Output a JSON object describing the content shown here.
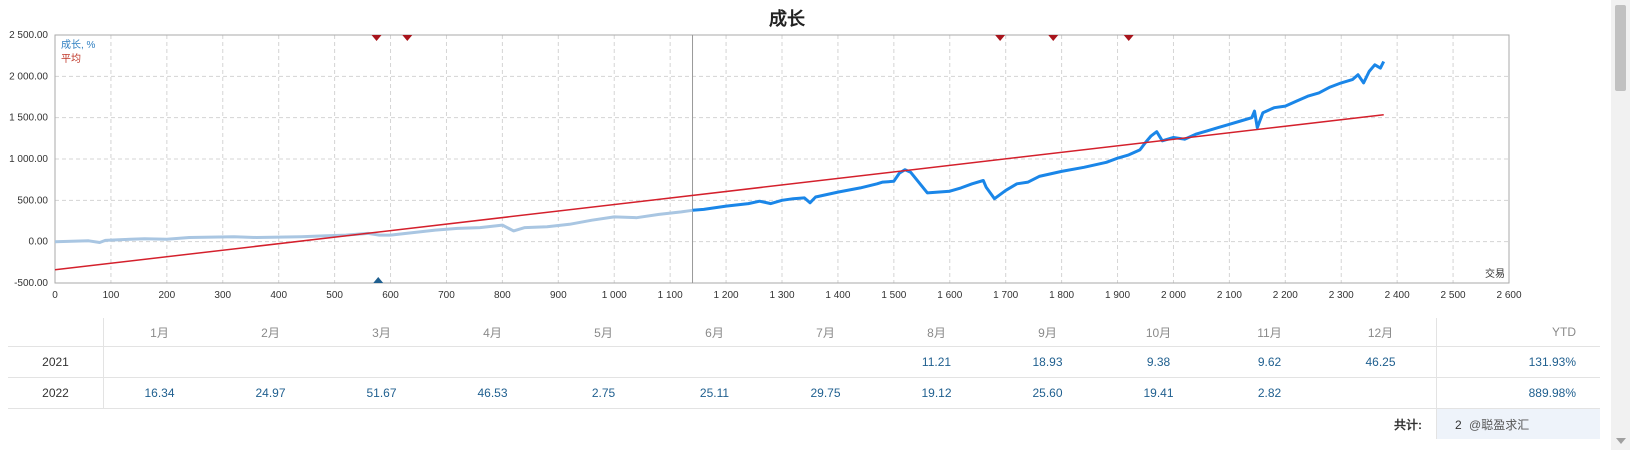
{
  "chart_data": {
    "type": "line",
    "title": "成长",
    "legend": [
      {
        "label": "成长, %",
        "color": "#2f7fc1"
      },
      {
        "label": "平均",
        "color": "#c0392b"
      }
    ],
    "legend_position": "top-left",
    "xlabel": "交易",
    "xlim": [
      0,
      2600
    ],
    "ylim": [
      -500,
      2500
    ],
    "grid": true,
    "x_ticks": [
      "0",
      "100",
      "200",
      "300",
      "400",
      "500",
      "600",
      "700",
      "800",
      "900",
      "1 000",
      "1 100",
      "1 200",
      "1 300",
      "1 400",
      "1 500",
      "1 600",
      "1 700",
      "1 800",
      "1 900",
      "2 000",
      "2 100",
      "2 200",
      "2 300",
      "2 400",
      "2 500",
      "2 600"
    ],
    "y_ticks": [
      "2 500.00",
      "2 000.00",
      "1 500.00",
      "1 000.00",
      "500.00",
      "0.00",
      "-500.00"
    ],
    "divider_x": 1140,
    "series": [
      {
        "name": "成长, %",
        "history_color": "#a9c6e2",
        "color": "#1a86e8",
        "history_until_x": 1140,
        "x": [
          0,
          30,
          60,
          80,
          90,
          120,
          160,
          200,
          240,
          280,
          320,
          360,
          400,
          440,
          480,
          520,
          560,
          580,
          600,
          640,
          680,
          720,
          760,
          800,
          820,
          840,
          880,
          920,
          960,
          1000,
          1040,
          1080,
          1120,
          1140,
          1160,
          1200,
          1240,
          1260,
          1280,
          1300,
          1320,
          1340,
          1350,
          1360,
          1400,
          1440,
          1470,
          1480,
          1500,
          1510,
          1520,
          1530,
          1560,
          1600,
          1620,
          1640,
          1660,
          1665,
          1680,
          1700,
          1720,
          1740,
          1760,
          1780,
          1800,
          1840,
          1860,
          1880,
          1900,
          1920,
          1940,
          1950,
          1960,
          1970,
          1980,
          2000,
          2020,
          2040,
          2060,
          2080,
          2100,
          2120,
          2140,
          2145,
          2150,
          2160,
          2180,
          2200,
          2220,
          2240,
          2260,
          2280,
          2300,
          2320,
          2330,
          2340,
          2350,
          2360,
          2370,
          2376
        ],
        "y": [
          0,
          5,
          10,
          -10,
          15,
          25,
          35,
          30,
          50,
          55,
          60,
          50,
          55,
          60,
          70,
          80,
          100,
          80,
          80,
          110,
          140,
          160,
          170,
          200,
          130,
          170,
          180,
          210,
          260,
          300,
          290,
          330,
          360,
          380,
          390,
          430,
          460,
          490,
          460,
          500,
          520,
          530,
          470,
          540,
          600,
          650,
          700,
          720,
          730,
          830,
          870,
          840,
          590,
          610,
          650,
          700,
          740,
          660,
          520,
          620,
          700,
          720,
          790,
          820,
          850,
          900,
          930,
          960,
          1010,
          1050,
          1110,
          1200,
          1280,
          1330,
          1220,
          1260,
          1240,
          1300,
          1340,
          1380,
          1420,
          1460,
          1500,
          1580,
          1380,
          1560,
          1620,
          1640,
          1700,
          1760,
          1800,
          1870,
          1920,
          1960,
          2020,
          1920,
          2060,
          2140,
          2100,
          2180
        ]
      },
      {
        "name": "平均",
        "color": "#d4202c",
        "x": [
          0,
          2376
        ],
        "y": [
          -340,
          1535
        ]
      }
    ],
    "markers_top_x": [
      575,
      630,
      1690,
      1785,
      1920
    ],
    "marker_bottom_x": 578,
    "markers_top_color": "#a8141c",
    "marker_bottom_color": "#1f5f8f"
  },
  "table": {
    "months": [
      "1月",
      "2月",
      "3月",
      "4月",
      "5月",
      "6月",
      "7月",
      "8月",
      "9月",
      "10月",
      "11月",
      "12月"
    ],
    "ytd_label": "YTD",
    "rows": [
      {
        "year": "2021",
        "values": [
          "",
          "",
          "",
          "",
          "",
          "",
          "",
          "11.21",
          "18.93",
          "9.38",
          "9.62",
          "46.25"
        ],
        "ytd": "131.93%"
      },
      {
        "year": "2022",
        "values": [
          "16.34",
          "24.97",
          "51.67",
          "46.53",
          "2.75",
          "25.11",
          "29.75",
          "19.12",
          "25.60",
          "19.41",
          "2.82",
          ""
        ],
        "ytd": "889.98%"
      }
    ],
    "total_label": "共计:",
    "total_value": "2",
    "watermark": "@聪盈求汇"
  },
  "scrollbar": {
    "thumb": "scrollbar-thumb"
  }
}
